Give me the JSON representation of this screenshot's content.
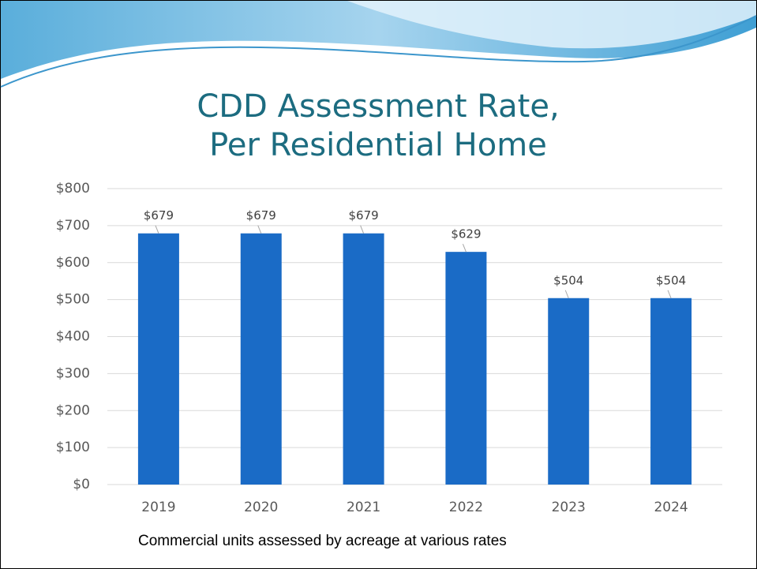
{
  "chart_data": {
    "type": "bar",
    "title": [
      "CDD Assessment Rate,",
      "Per Residential Home"
    ],
    "categories": [
      "2019",
      "2020",
      "2021",
      "2022",
      "2023",
      "2024"
    ],
    "values": [
      679,
      679,
      679,
      629,
      504,
      504
    ],
    "value_labels": [
      "$679",
      "$679",
      "$679",
      "$629",
      "$504",
      "$504"
    ],
    "color": "#1a6bc6",
    "ylim": [
      0,
      800
    ],
    "yticks": [
      {
        "value": 0,
        "label": "$0"
      },
      {
        "value": 100,
        "label": "$100"
      },
      {
        "value": 200,
        "label": "$200"
      },
      {
        "value": 300,
        "label": "$300"
      },
      {
        "value": 400,
        "label": "$400"
      },
      {
        "value": 500,
        "label": "$500"
      },
      {
        "value": 600,
        "label": "$600"
      },
      {
        "value": 700,
        "label": "$700"
      },
      {
        "value": 800,
        "label": "$800"
      }
    ],
    "grid": true,
    "footnote": "Commercial units assessed by acreage at various rates"
  }
}
